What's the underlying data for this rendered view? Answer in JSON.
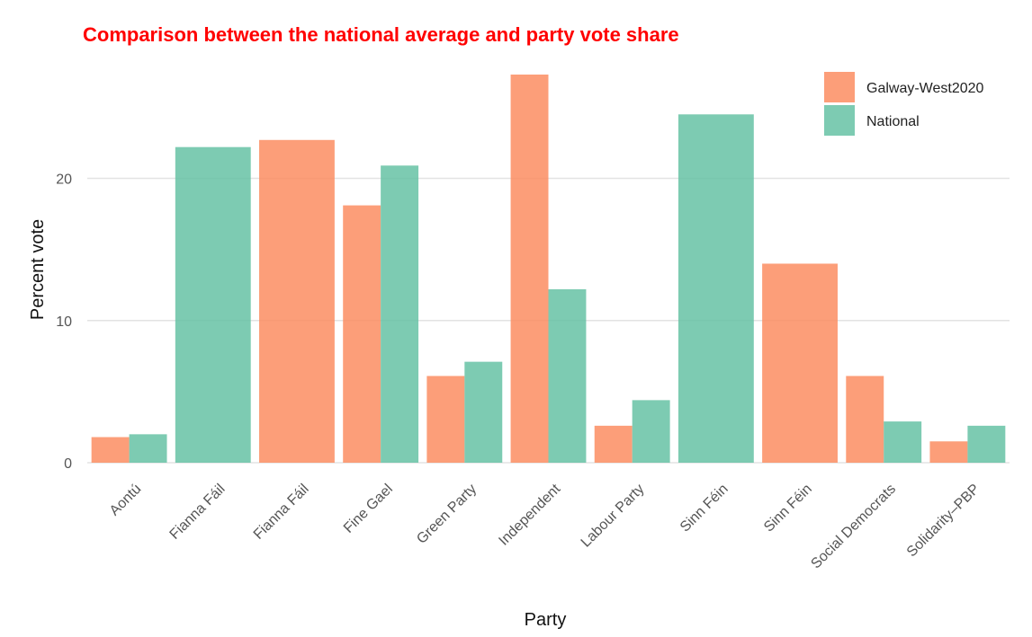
{
  "chart_data": {
    "type": "bar",
    "title": "Comparison between the national average and party vote share",
    "xlabel": "Party",
    "ylabel": "Percent vote",
    "categories": [
      "Aontú",
      "Fianna Fáil",
      "Fianna Fáil",
      "Fine Gael",
      "Green Party",
      "Independent",
      "Labour Party",
      "Sinn Féin",
      "Sinn Féin",
      "Social Democrats",
      "Solidarity–PBP"
    ],
    "series": [
      {
        "name": "Galway-West2020",
        "values": [
          1.8,
          null,
          22.7,
          18.1,
          6.1,
          27.3,
          2.6,
          null,
          14.0,
          6.1,
          1.5
        ]
      },
      {
        "name": "National",
        "values": [
          2.0,
          22.2,
          null,
          20.9,
          7.1,
          12.2,
          4.4,
          24.5,
          null,
          2.9,
          2.6
        ]
      }
    ],
    "ylim": [
      0,
      28.5
    ],
    "yticks": [
      0,
      10,
      20
    ],
    "grid": true,
    "legend_position": "top-right"
  },
  "colors": {
    "title": "#ff0000",
    "galway": "#fc8d62",
    "national": "#66c2a5",
    "grid": "#e3e3e3"
  }
}
